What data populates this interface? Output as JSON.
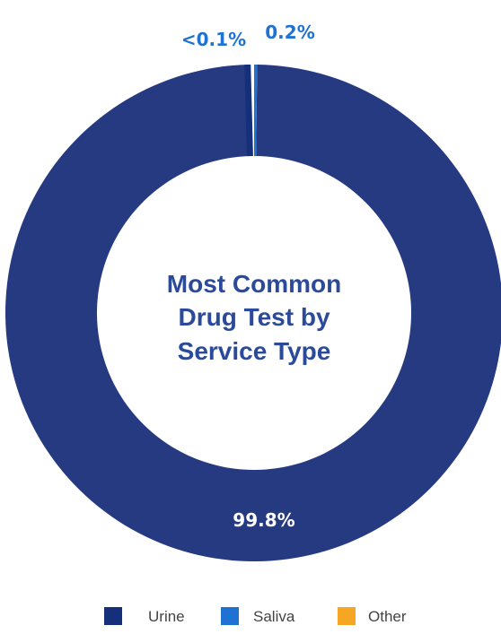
{
  "chart_data": {
    "type": "pie",
    "style": "donut",
    "title_lines": [
      "Most Common",
      "Drug Test by",
      "Service Type"
    ],
    "slices": [
      {
        "name": "Urine",
        "value": 99.8,
        "label": "99.8%",
        "color": "#263A82"
      },
      {
        "name": "Saliva",
        "value": 0.2,
        "label": "0.2%",
        "color": "#1E73D2"
      },
      {
        "name": "Other",
        "value": 0.1,
        "label": "<0.1%",
        "color": "#F5A623"
      }
    ],
    "legend": {
      "placement": "bottom",
      "items": [
        {
          "label": "Urine",
          "color": "#14307A"
        },
        {
          "label": "Saliva",
          "color": "#1E73D2"
        },
        {
          "label": "Other",
          "color": "#F5A623"
        }
      ]
    },
    "title_color": "#2C4A9A",
    "small_label_color": "#1E73D2",
    "inside_label_color": "#FFFFFF",
    "divider_color": "#14307A"
  }
}
